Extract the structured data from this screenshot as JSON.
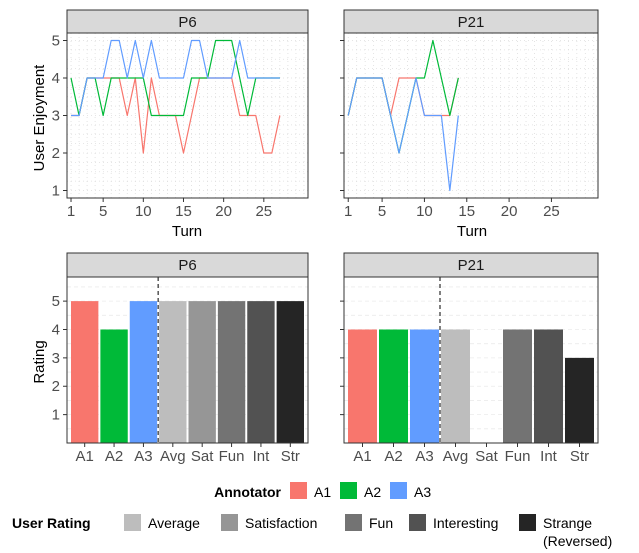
{
  "colors": {
    "A1": "#F8766D",
    "A2": "#00BA38",
    "A3": "#619CFF",
    "Average": "#BDBDBD",
    "Satisfaction": "#969696",
    "Fun": "#737373",
    "Interesting": "#525252",
    "Strange": "#252525",
    "strip": "#D9D9D9",
    "panel_border": "#333333",
    "grid": "#E5E5E5"
  },
  "chart_data": [
    {
      "type": "line",
      "facet": "P6",
      "xlabel": "Turn",
      "ylabel": "User Enjoyment",
      "xlim": [
        0.5,
        30.5
      ],
      "ylim": [
        0.8,
        5.2
      ],
      "xticks": [
        1,
        5,
        10,
        15,
        20,
        25
      ],
      "yticks": [
        1,
        2,
        3,
        4,
        5
      ],
      "series": [
        {
          "name": "A1",
          "x": [
            1,
            2,
            3,
            4,
            5,
            6,
            7,
            8,
            9,
            10,
            11,
            12,
            13,
            14,
            15,
            16,
            17,
            18,
            19,
            20,
            21,
            22,
            23,
            24,
            25,
            26,
            27
          ],
          "values": [
            3,
            3,
            4,
            4,
            4,
            4,
            4,
            3,
            4,
            2,
            4,
            3,
            3,
            3,
            2,
            3,
            4,
            4,
            4,
            4,
            4,
            3,
            3,
            3,
            2,
            2,
            3
          ]
        },
        {
          "name": "A2",
          "x": [
            1,
            2,
            3,
            4,
            5,
            6,
            7,
            8,
            9,
            10,
            11,
            12,
            13,
            14,
            15,
            16,
            17,
            18,
            19,
            20,
            21,
            22,
            23,
            24,
            25,
            26,
            27
          ],
          "values": [
            4,
            3,
            4,
            4,
            3,
            4,
            4,
            4,
            4,
            4,
            3,
            3,
            3,
            3,
            3,
            4,
            4,
            4,
            5,
            5,
            5,
            4,
            3,
            4,
            4,
            4,
            4
          ]
        },
        {
          "name": "A3",
          "x": [
            1,
            2,
            3,
            4,
            5,
            6,
            7,
            8,
            9,
            10,
            11,
            12,
            13,
            14,
            15,
            16,
            17,
            18,
            19,
            20,
            21,
            22,
            23,
            24,
            25,
            26,
            27
          ],
          "values": [
            3,
            3,
            4,
            4,
            4,
            5,
            5,
            4,
            5,
            4,
            5,
            4,
            4,
            4,
            4,
            5,
            5,
            4,
            4,
            4,
            4,
            5,
            4,
            4,
            4,
            4,
            4
          ]
        }
      ]
    },
    {
      "type": "line",
      "facet": "P21",
      "xlabel": "Turn",
      "ylabel": "",
      "xlim": [
        0.5,
        30.5
      ],
      "ylim": [
        0.8,
        5.2
      ],
      "xticks": [
        1,
        5,
        10,
        15,
        20,
        25
      ],
      "yticks": [
        1,
        2,
        3,
        4,
        5
      ],
      "series": [
        {
          "name": "A1",
          "x": [
            1,
            2,
            3,
            4,
            5,
            6,
            7,
            8,
            9,
            10,
            11,
            12,
            13,
            14
          ],
          "values": [
            3,
            4,
            4,
            4,
            4,
            3,
            4,
            4,
            4,
            3,
            3,
            3,
            3,
            4
          ]
        },
        {
          "name": "A2",
          "x": [
            1,
            2,
            3,
            4,
            5,
            6,
            7,
            8,
            9,
            10,
            11,
            12,
            13,
            14
          ],
          "values": [
            3,
            4,
            4,
            4,
            4,
            3,
            2,
            3,
            4,
            4,
            5,
            4,
            3,
            4
          ]
        },
        {
          "name": "A3",
          "x": [
            1,
            2,
            3,
            4,
            5,
            6,
            7,
            8,
            9,
            10,
            11,
            12,
            13,
            14
          ],
          "values": [
            3,
            4,
            4,
            4,
            4,
            3,
            2,
            3,
            4,
            3,
            3,
            3,
            1,
            3
          ]
        }
      ]
    },
    {
      "type": "bar",
      "facet": "P6",
      "ylabel": "Rating",
      "ylim": [
        0,
        5.85
      ],
      "yticks": [
        1,
        2,
        3,
        4,
        5
      ],
      "categories": [
        "A1",
        "A2",
        "A3",
        "Avg",
        "Sat",
        "Fun",
        "Int",
        "Str"
      ],
      "values": [
        5,
        4,
        5,
        5,
        5,
        5,
        5,
        5
      ],
      "divider_after": 3
    },
    {
      "type": "bar",
      "facet": "P21",
      "ylabel": "",
      "ylim": [
        0,
        5.85
      ],
      "yticks": [
        1,
        2,
        3,
        4,
        5
      ],
      "categories": [
        "A1",
        "A2",
        "A3",
        "Avg",
        "Sat",
        "Fun",
        "Int",
        "Str"
      ],
      "values": [
        4,
        4,
        4,
        4,
        0,
        4,
        4,
        3
      ],
      "divider_after": 3
    }
  ],
  "legend": {
    "annotator": {
      "title": "Annotator",
      "items": [
        {
          "key": "A1",
          "label": "A1"
        },
        {
          "key": "A2",
          "label": "A2"
        },
        {
          "key": "A3",
          "label": "A3"
        }
      ]
    },
    "user_rating": {
      "title": "User Rating",
      "items": [
        {
          "key": "Average",
          "label": "Average"
        },
        {
          "key": "Satisfaction",
          "label": "Satisfaction"
        },
        {
          "key": "Fun",
          "label": "Fun"
        },
        {
          "key": "Interesting",
          "label": "Interesting"
        },
        {
          "key": "Strange",
          "label": "Strange",
          "label2": "(Reversed)"
        }
      ]
    }
  }
}
